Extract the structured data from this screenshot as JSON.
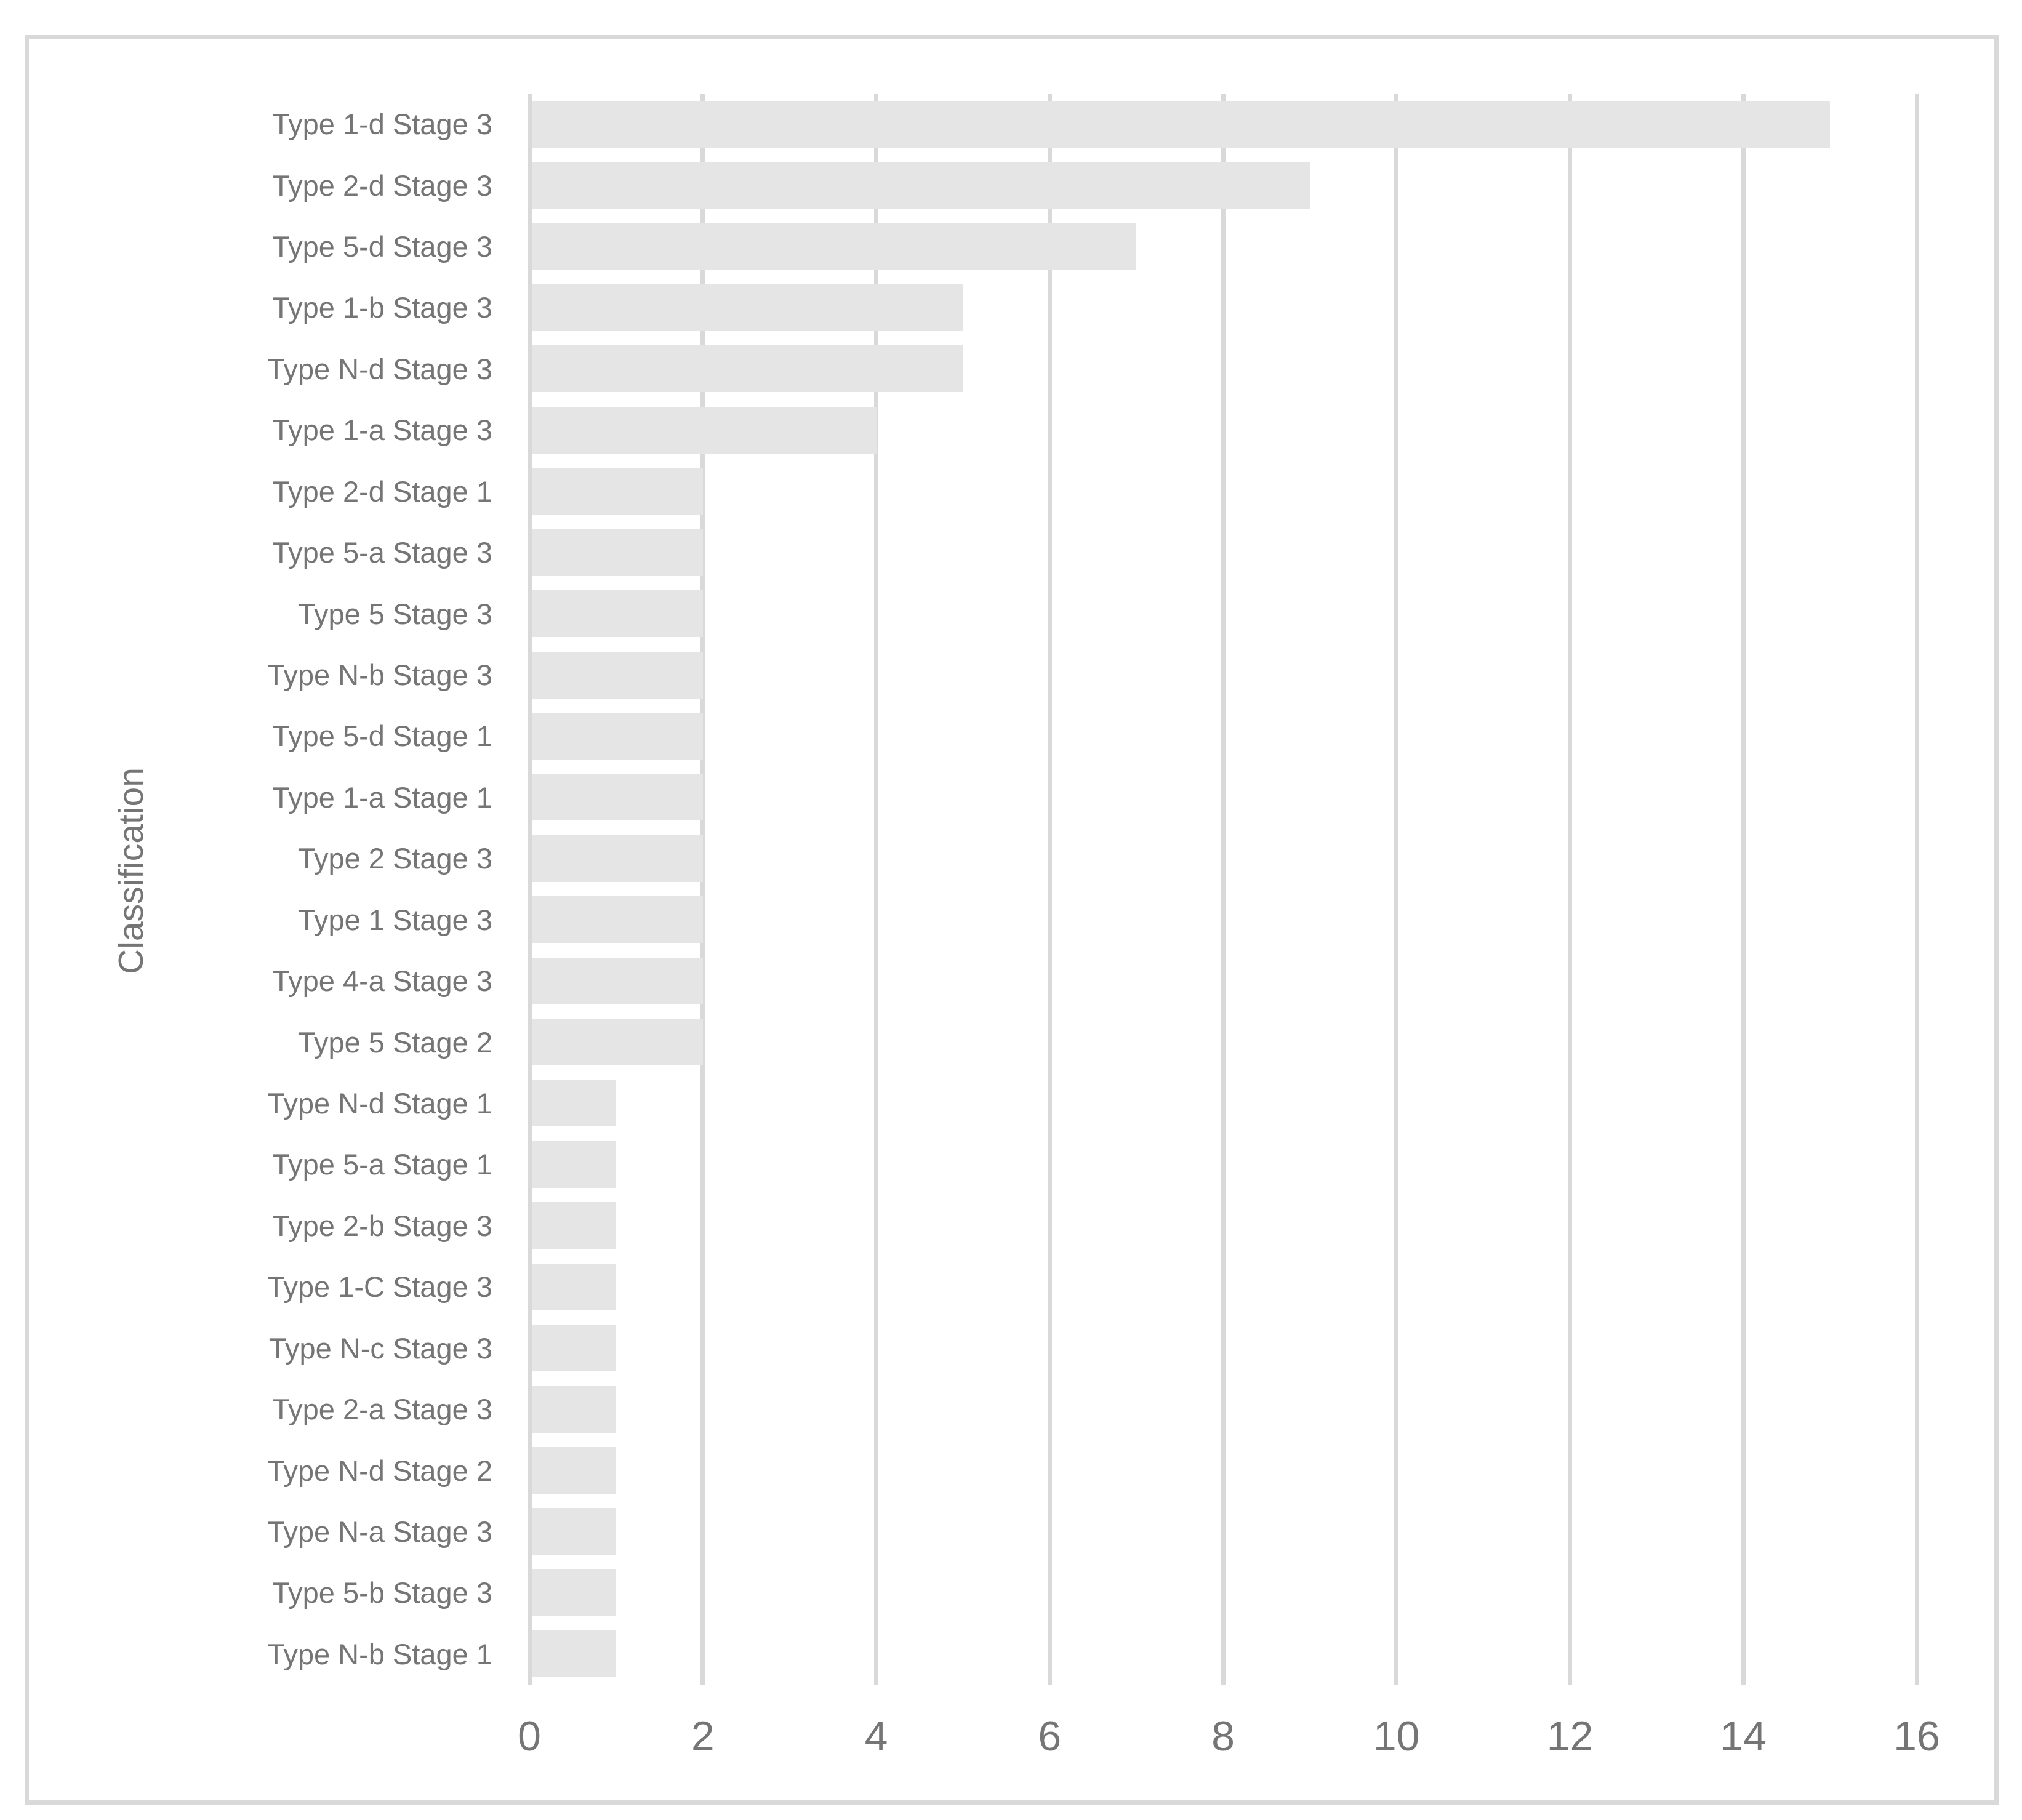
{
  "chart_data": {
    "type": "bar",
    "orientation": "horizontal",
    "title": "",
    "xlabel": "",
    "ylabel": "Classification",
    "categories": [
      "Type 1-d Stage 3",
      "Type 2-d Stage 3",
      "Type 5-d Stage 3",
      "Type 1-b Stage 3",
      "Type N-d Stage 3",
      "Type 1-a Stage 3",
      "Type 2-d Stage 1",
      "Type 5-a Stage 3",
      "Type 5 Stage 3",
      "Type N-b Stage 3",
      "Type 5-d Stage 1",
      "Type 1-a Stage 1",
      "Type 2 Stage 3",
      "Type 1 Stage 3",
      "Type 4-a Stage 3",
      "Type 5 Stage 2",
      "Type N-d Stage 1",
      "Type 5-a Stage 1",
      "Type 2-b Stage 3",
      "Type 1-C Stage 3",
      "Type N-c Stage 3",
      "Type 2-a Stage 3",
      "Type N-d Stage 2",
      "Type N-a Stage 3",
      "Type 5-b Stage 3",
      "Type N-b Stage 1"
    ],
    "values": [
      15,
      9,
      7,
      5,
      5,
      4,
      2,
      2,
      2,
      2,
      2,
      2,
      2,
      2,
      2,
      2,
      1,
      1,
      1,
      1,
      1,
      1,
      1,
      1,
      1,
      1
    ],
    "xticks": [
      0,
      2,
      4,
      6,
      8,
      10,
      12,
      14,
      16
    ],
    "xlim": [
      0,
      16
    ],
    "grid": "vertical",
    "legend": "none",
    "bar_color": "#e5e5e5",
    "gridline_color": "#d9d9d9",
    "text_color": "#757575"
  }
}
